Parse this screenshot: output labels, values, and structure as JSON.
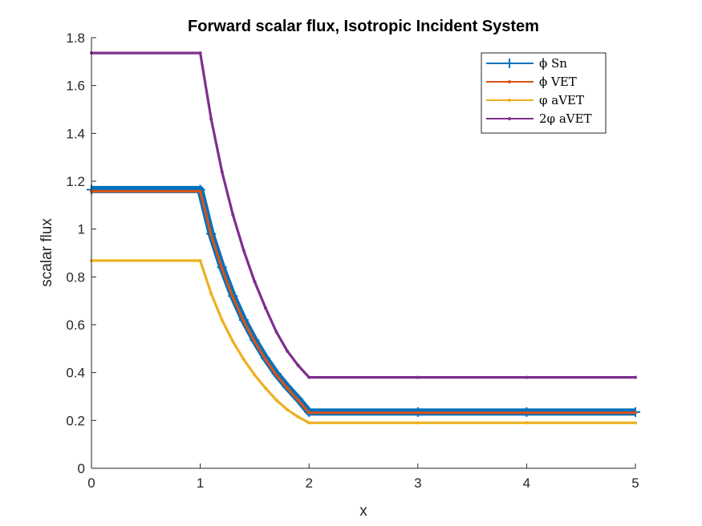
{
  "chart_data": {
    "type": "line",
    "title": "Forward scalar flux, Isotropic Incident System",
    "xlabel": "x",
    "ylabel": "scalar flux",
    "xlim": [
      0,
      5
    ],
    "ylim": [
      0,
      1.8
    ],
    "xticks": [
      "0",
      "1",
      "2",
      "3",
      "4",
      "5"
    ],
    "yticks": [
      "0",
      "0.2",
      "0.4",
      "0.6",
      "0.8",
      "1",
      "1.2",
      "1.4",
      "1.6",
      "1.8"
    ],
    "legend_position": "top-right",
    "grid": false,
    "series": [
      {
        "name": "ϕ Sn",
        "color": "#0072BD",
        "marker": "plus",
        "x": [
          0,
          1,
          1.1,
          1.2,
          1.3,
          1.4,
          1.5,
          1.6,
          1.7,
          1.8,
          1.9,
          2,
          3,
          4,
          5
        ],
        "y": [
          1.165,
          1.165,
          0.98,
          0.84,
          0.72,
          0.62,
          0.535,
          0.46,
          0.395,
          0.34,
          0.29,
          0.235,
          0.235,
          0.235,
          0.235
        ]
      },
      {
        "name": "ϕ VET",
        "color": "#D95319",
        "marker": "dot",
        "x": [
          0,
          1,
          1.1,
          1.2,
          1.3,
          1.4,
          1.5,
          1.6,
          1.7,
          1.8,
          1.9,
          2,
          3,
          4,
          5
        ],
        "y": [
          1.158,
          1.158,
          0.975,
          0.835,
          0.715,
          0.615,
          0.53,
          0.455,
          0.39,
          0.335,
          0.285,
          0.232,
          0.232,
          0.232,
          0.232
        ]
      },
      {
        "name": "φ aVET",
        "color": "#EDB120",
        "marker": "dot",
        "x": [
          0,
          1,
          1.1,
          1.2,
          1.3,
          1.4,
          1.5,
          1.6,
          1.7,
          1.8,
          1.9,
          2,
          3,
          4,
          5
        ],
        "y": [
          0.868,
          0.868,
          0.73,
          0.62,
          0.53,
          0.455,
          0.39,
          0.335,
          0.285,
          0.245,
          0.215,
          0.19,
          0.19,
          0.19,
          0.19
        ]
      },
      {
        "name": "2φ aVET",
        "color": "#7E2F8E",
        "marker": "dot",
        "x": [
          0,
          1,
          1.1,
          1.2,
          1.3,
          1.4,
          1.5,
          1.6,
          1.7,
          1.8,
          1.9,
          2,
          3,
          4,
          5
        ],
        "y": [
          1.736,
          1.736,
          1.46,
          1.24,
          1.06,
          0.91,
          0.78,
          0.67,
          0.57,
          0.49,
          0.43,
          0.38,
          0.38,
          0.38,
          0.38
        ]
      }
    ]
  }
}
